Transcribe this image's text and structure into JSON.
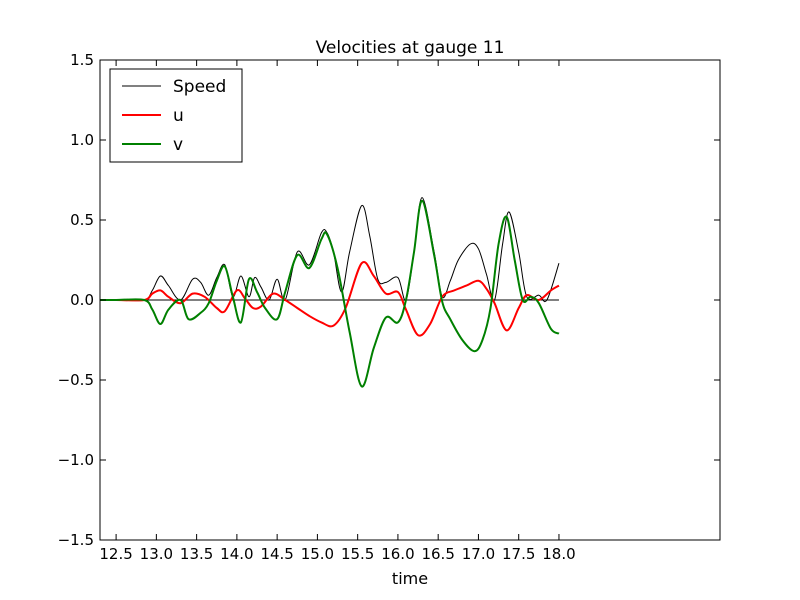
{
  "chart_data": {
    "type": "line",
    "title": "Velocities at gauge 11",
    "xlabel": "time",
    "ylabel": "",
    "xlim": [
      12.3,
      20.0
    ],
    "ylim": [
      -1.5,
      1.5
    ],
    "xticks": [
      12.5,
      13.0,
      13.5,
      14.0,
      14.5,
      15.0,
      15.5,
      16.0,
      16.5,
      17.0,
      17.5,
      18.0
    ],
    "xtick_labels": [
      "12.5",
      "13.0",
      "13.5",
      "14.0",
      "14.5",
      "15.0",
      "15.5",
      "16.0",
      "16.5",
      "17.0",
      "17.5",
      "18.0"
    ],
    "yticks": [
      -1.5,
      -1.0,
      -0.5,
      0.0,
      0.5,
      1.0,
      1.5
    ],
    "ytick_labels": [
      "−1.5",
      "−1.0",
      "−0.5",
      "0.0",
      "0.5",
      "1.0",
      "1.5"
    ],
    "grid": false,
    "legend_position": "top-left",
    "zero_line": true,
    "series": [
      {
        "name": "Speed",
        "color": "#000000",
        "linewidth": 1,
        "x": [
          12.3,
          12.5,
          12.85,
          12.95,
          13.05,
          13.15,
          13.3,
          13.45,
          13.55,
          13.65,
          13.75,
          13.85,
          13.95,
          14.05,
          14.15,
          14.22,
          14.3,
          14.4,
          14.5,
          14.6,
          14.75,
          14.9,
          15.05,
          15.12,
          15.2,
          15.3,
          15.4,
          15.55,
          15.65,
          15.75,
          15.85,
          16.0,
          16.1,
          16.2,
          16.3,
          16.45,
          16.55,
          16.65,
          16.75,
          16.9,
          17.0,
          17.1,
          17.2,
          17.3,
          17.38,
          17.5,
          17.6,
          17.75,
          17.85,
          18.0
        ],
        "y": [
          0.0,
          0.0,
          0.0,
          0.06,
          0.15,
          0.09,
          0.0,
          0.13,
          0.11,
          0.03,
          0.14,
          0.22,
          0.02,
          0.15,
          0.02,
          0.14,
          0.08,
          0.0,
          0.13,
          0.0,
          0.3,
          0.22,
          0.42,
          0.42,
          0.3,
          0.05,
          0.3,
          0.59,
          0.4,
          0.13,
          0.11,
          0.14,
          0.0,
          0.3,
          0.64,
          0.3,
          0.02,
          0.12,
          0.25,
          0.35,
          0.32,
          0.16,
          0.0,
          0.35,
          0.55,
          0.3,
          0.02,
          0.03,
          0.0,
          0.23
        ]
      },
      {
        "name": "u",
        "color": "#ff0000",
        "linewidth": 2,
        "x": [
          12.3,
          12.5,
          12.85,
          12.95,
          13.05,
          13.15,
          13.3,
          13.45,
          13.6,
          13.75,
          13.85,
          14.0,
          14.1,
          14.2,
          14.3,
          14.45,
          14.6,
          14.75,
          14.9,
          15.05,
          15.2,
          15.35,
          15.55,
          15.7,
          15.85,
          16.0,
          16.1,
          16.25,
          16.4,
          16.55,
          16.7,
          16.85,
          17.0,
          17.1,
          17.2,
          17.35,
          17.5,
          17.6,
          17.75,
          17.9,
          18.0
        ],
        "y": [
          0.0,
          0.0,
          0.0,
          0.04,
          0.06,
          0.02,
          -0.02,
          0.04,
          0.02,
          -0.05,
          -0.07,
          0.06,
          0.01,
          -0.05,
          -0.04,
          0.04,
          0.0,
          -0.05,
          -0.1,
          -0.14,
          -0.16,
          -0.05,
          0.23,
          0.15,
          0.04,
          0.05,
          -0.06,
          -0.22,
          -0.15,
          0.02,
          0.06,
          0.09,
          0.12,
          0.07,
          -0.02,
          -0.19,
          -0.05,
          0.03,
          0.0,
          0.06,
          0.09
        ]
      },
      {
        "name": "v",
        "color": "#008000",
        "linewidth": 2,
        "x": [
          12.3,
          12.5,
          12.85,
          12.95,
          13.05,
          13.15,
          13.3,
          13.4,
          13.55,
          13.65,
          13.75,
          13.85,
          13.95,
          14.05,
          14.15,
          14.25,
          14.35,
          14.5,
          14.6,
          14.75,
          14.9,
          15.05,
          15.12,
          15.25,
          15.4,
          15.55,
          15.7,
          15.85,
          16.0,
          16.1,
          16.2,
          16.3,
          16.45,
          16.55,
          16.65,
          16.8,
          16.95,
          17.05,
          17.15,
          17.25,
          17.35,
          17.45,
          17.55,
          17.65,
          17.75,
          17.9,
          18.0
        ],
        "y": [
          0.0,
          0.0,
          0.0,
          -0.06,
          -0.15,
          -0.06,
          0.0,
          -0.12,
          -0.08,
          -0.02,
          0.12,
          0.21,
          0.02,
          -0.14,
          0.13,
          0.05,
          -0.05,
          -0.12,
          0.05,
          0.28,
          0.2,
          0.38,
          0.41,
          0.2,
          -0.2,
          -0.54,
          -0.3,
          -0.11,
          -0.14,
          0.0,
          0.3,
          0.62,
          0.28,
          -0.01,
          -0.12,
          -0.25,
          -0.32,
          -0.25,
          -0.05,
          0.35,
          0.52,
          0.25,
          0.0,
          0.02,
          -0.02,
          -0.18,
          -0.21
        ]
      }
    ]
  }
}
